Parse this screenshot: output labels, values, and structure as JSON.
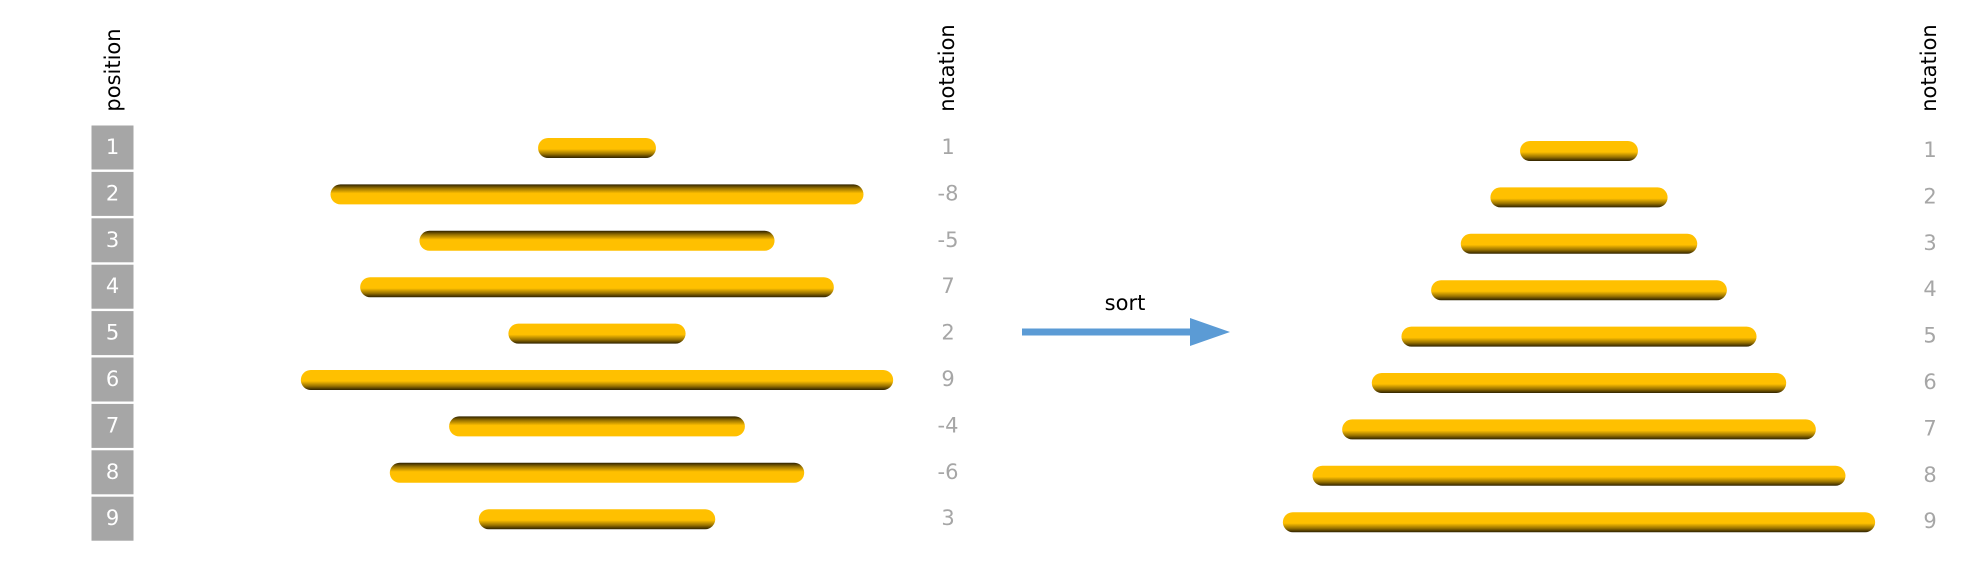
{
  "left": {
    "position_label": "position",
    "notation_label": "notation",
    "positions": [
      1,
      2,
      3,
      4,
      5,
      6,
      7,
      8,
      9
    ],
    "notation": [
      1,
      -8,
      -5,
      7,
      2,
      9,
      -4,
      -6,
      3
    ]
  },
  "sort_label": "sort",
  "right": {
    "notation_label": "notation",
    "notation": [
      1,
      2,
      3,
      4,
      5,
      6,
      7,
      8,
      9
    ]
  }
}
